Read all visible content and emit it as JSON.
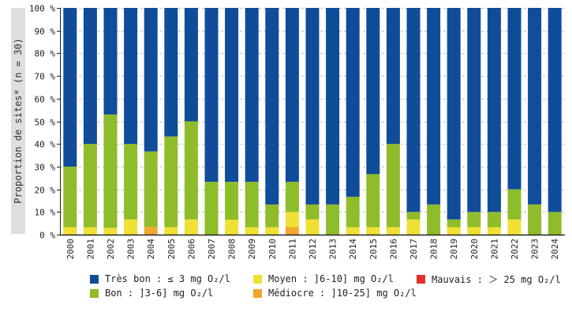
{
  "colors": {
    "tres_bon": "#0f4c9a",
    "bon": "#8fbc2a",
    "moyen": "#f0e033",
    "mediocre": "#f2a72c",
    "mauvais": "#e5312b",
    "grid": "#bdbdbd",
    "axis": "#222222",
    "ylabel_band": "#dedede"
  },
  "chart_data": {
    "type": "bar",
    "stacked": true,
    "categories": [
      "2000",
      "2001",
      "2002",
      "2003",
      "2004",
      "2005",
      "2006",
      "2007",
      "2008",
      "2009",
      "2010",
      "2011",
      "2012",
      "2013",
      "2014",
      "2015",
      "2016",
      "2017",
      "2018",
      "2019",
      "2020",
      "2021",
      "2022",
      "2023",
      "2024"
    ],
    "series": [
      {
        "name": "Très bon : ≤ 3 mg O₂/l",
        "key": "tres_bon",
        "values": [
          70,
          60,
          47,
          60,
          63.3,
          56.7,
          50,
          76.7,
          76.7,
          76.7,
          86.7,
          76.7,
          86.7,
          86.7,
          83.3,
          73.3,
          60,
          90,
          86.7,
          93.3,
          90,
          90,
          80,
          86.7,
          90
        ]
      },
      {
        "name": "Bon : ]3-6] mg O₂/l",
        "key": "bon",
        "values": [
          26.7,
          36.7,
          50,
          33.3,
          33.3,
          40,
          43.3,
          23.3,
          16.7,
          20,
          10,
          13.3,
          6.6,
          13.3,
          13.4,
          23.4,
          36.7,
          3.3,
          13.3,
          3.4,
          6.7,
          6.7,
          13.3,
          13.3,
          10
        ]
      },
      {
        "name": "Moyen : ]6-10] mg O₂/l",
        "key": "moyen",
        "values": [
          3.3,
          3.3,
          3,
          6.7,
          0,
          3.3,
          6.7,
          0,
          6.6,
          3.3,
          3.3,
          6.7,
          6.7,
          0,
          3.3,
          3.3,
          3.3,
          6.7,
          0,
          3.3,
          3.3,
          3.3,
          6.7,
          0,
          0
        ]
      },
      {
        "name": "Médiocre : ]10-25] mg O₂/l",
        "key": "mediocre",
        "values": [
          0,
          0,
          0,
          0,
          3.4,
          0,
          0,
          0,
          0,
          0,
          0,
          3.3,
          0,
          0,
          0,
          0,
          0,
          0,
          0,
          0,
          0,
          0,
          0,
          0,
          0
        ]
      },
      {
        "name": "Mauvais : ＞ 25 mg O₂/l",
        "key": "mauvais",
        "values": [
          0,
          0,
          0,
          0,
          0,
          0,
          0,
          0,
          0,
          0,
          0,
          0,
          0,
          0,
          0,
          0,
          0,
          0,
          0,
          0,
          0,
          0,
          0,
          0,
          0
        ]
      }
    ],
    "title": "",
    "xlabel": "",
    "ylabel": "Proportion de sites* (n = 30)",
    "ylim": [
      0,
      100
    ],
    "yticks": [
      0,
      10,
      20,
      30,
      40,
      50,
      60,
      70,
      80,
      90,
      100
    ],
    "ytick_suffix": " %",
    "grid": true,
    "legend_position": "bottom",
    "legend": [
      {
        "label": "Très bon : ≤ 3 mg O₂/l",
        "key": "tres_bon"
      },
      {
        "label": "Moyen : ]6-10] mg O₂/l",
        "key": "moyen"
      },
      {
        "label": "Mauvais : ＞ 25 mg O₂/l",
        "key": "mauvais"
      },
      {
        "label": "Bon : ]3-6] mg O₂/l",
        "key": "bon"
      },
      {
        "label": "Médiocre : ]10-25] mg O₂/l",
        "key": "mediocre"
      }
    ]
  }
}
